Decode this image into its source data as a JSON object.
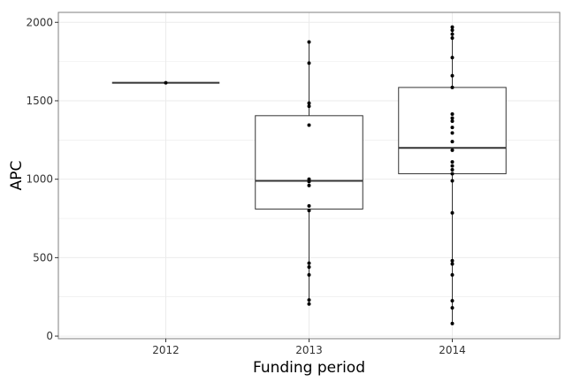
{
  "chart_data": {
    "type": "box",
    "xlabel": "Funding period",
    "ylabel": "APC",
    "categories": [
      "2012",
      "2013",
      "2014"
    ],
    "ylim": [
      0,
      2000
    ],
    "yticks": [
      0,
      500,
      1000,
      1500,
      2000
    ],
    "ytick_labels": [
      "0",
      "500",
      "1000",
      "1500",
      "2000"
    ],
    "grid": true,
    "boxes": [
      {
        "category": "2012",
        "q1": 1615,
        "median": 1615,
        "q3": 1615,
        "whisker_low": 1615,
        "whisker_high": 1615
      },
      {
        "category": "2013",
        "q1": 810,
        "median": 990,
        "q3": 1405,
        "whisker_low": 200,
        "whisker_high": 1870
      },
      {
        "category": "2014",
        "q1": 1035,
        "median": 1200,
        "q3": 1585,
        "whisker_low": 80,
        "whisker_high": 1970
      }
    ],
    "points": [
      {
        "category": "2012",
        "values": [
          1615
        ]
      },
      {
        "category": "2013",
        "values": [
          1875,
          1740,
          1485,
          1465,
          1345,
          1000,
          985,
          960,
          830,
          800,
          465,
          440,
          390,
          230,
          205
        ]
      },
      {
        "category": "2014",
        "values": [
          1970,
          1950,
          1925,
          1900,
          1775,
          1660,
          1585,
          1415,
          1390,
          1370,
          1330,
          1295,
          1240,
          1185,
          1110,
          1085,
          1060,
          1035,
          990,
          785,
          480,
          460,
          390,
          225,
          180,
          80
        ]
      }
    ],
    "colors": {
      "background": "#ffffff",
      "grid": "#ebebeb",
      "panel_border": "#7f7f7f",
      "box_line": "#333333",
      "median_line": "#333333",
      "point": "#000000",
      "tick_label": "#333333",
      "axis_title": "#000000"
    }
  }
}
